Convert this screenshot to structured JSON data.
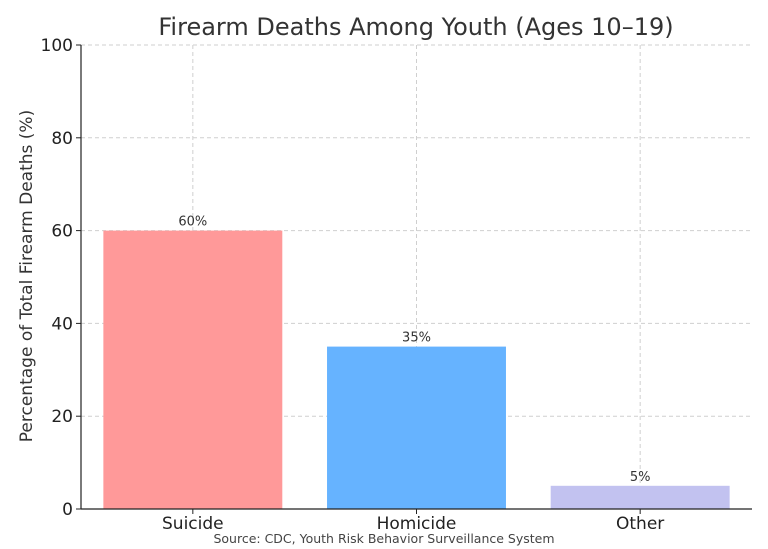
{
  "chart_data": {
    "type": "bar",
    "title": "Firearm Deaths Among Youth (Ages 10–19)",
    "xlabel": "",
    "ylabel": "Percentage of Total Firearm Deaths (%)",
    "categories": [
      "Suicide",
      "Homicide",
      "Other"
    ],
    "values": [
      60,
      35,
      5
    ],
    "data_labels": [
      "60%",
      "35%",
      "5%"
    ],
    "colors": [
      "#ff9999",
      "#66b3ff",
      "#c2c2f0"
    ],
    "ylim": [
      0,
      100
    ],
    "yticks": [
      0,
      20,
      40,
      60,
      80,
      100
    ],
    "grid": true,
    "source": "Source: CDC, Youth Risk Behavior Surveillance System"
  }
}
